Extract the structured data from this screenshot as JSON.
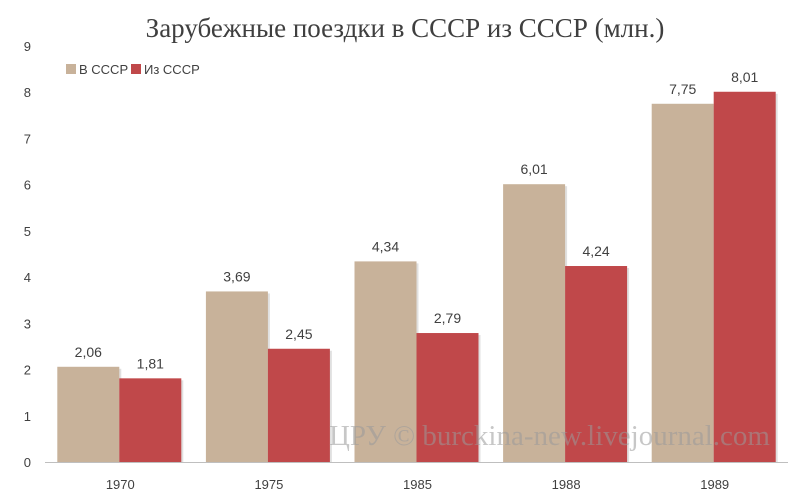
{
  "chart_data": {
    "type": "bar",
    "title": "Зарубежные поездки в СССР из СССР (млн.)",
    "categories": [
      "1970",
      "1975",
      "1985",
      "1988",
      "1989"
    ],
    "series": [
      {
        "name": "В СССР",
        "values": [
          2.06,
          3.69,
          4.34,
          6.01,
          7.75
        ],
        "labels": [
          "2,06",
          "3,69",
          "4,34",
          "6,01",
          "7,75"
        ],
        "color": "#c8b29a"
      },
      {
        "name": "Из СССР",
        "values": [
          1.81,
          2.45,
          2.79,
          4.24,
          8.01
        ],
        "labels": [
          "1,81",
          "2,45",
          "2,79",
          "4,24",
          "8,01"
        ],
        "color": "#c0484a"
      }
    ],
    "ylim": [
      0,
      9
    ],
    "yticks": [
      0,
      1,
      2,
      3,
      4,
      5,
      6,
      7,
      8,
      9
    ],
    "grid": false,
    "legend_position": "top-left",
    "watermark": "ЦРУ © burckina-new.livejournal.com"
  }
}
